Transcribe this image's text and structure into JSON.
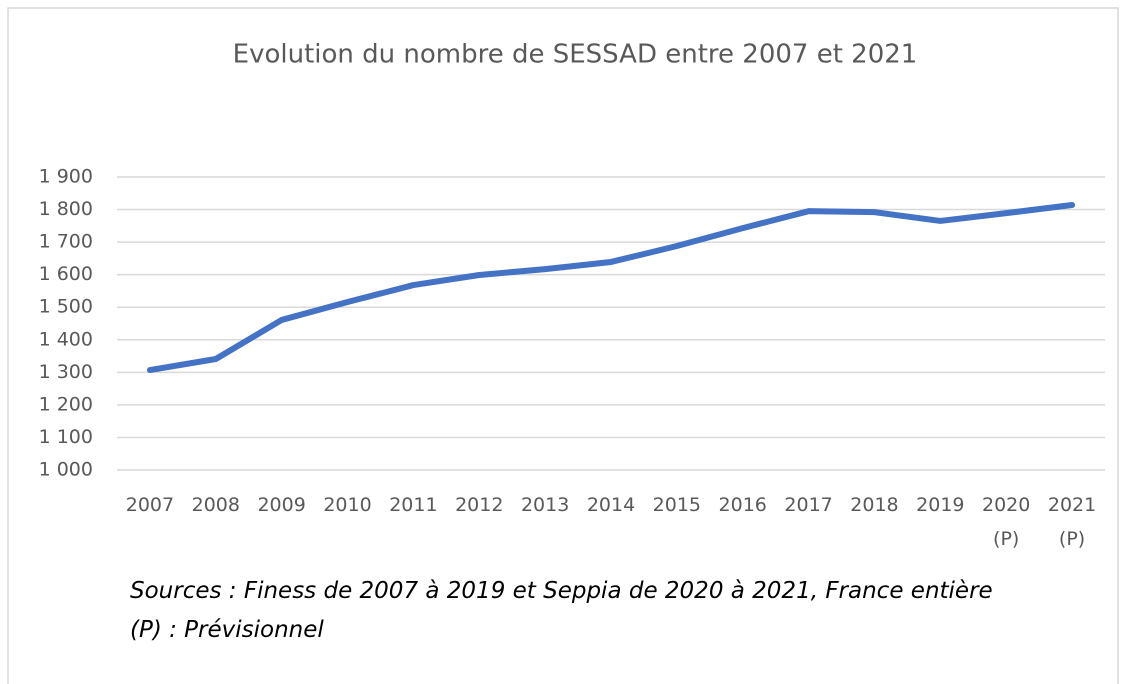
{
  "chart_data": {
    "type": "line",
    "title": "Evolution du nombre de SESSAD entre 2007 et 2021",
    "categories": [
      "2007",
      "2008",
      "2009",
      "2010",
      "2011",
      "2012",
      "2013",
      "2014",
      "2015",
      "2016",
      "2017",
      "2018",
      "2019",
      "2020\n(P)",
      "2021\n(P)"
    ],
    "series": [
      {
        "name": "SESSAD",
        "color": "#4472c4",
        "values": [
          1307,
          1341,
          1461,
          1516,
          1568,
          1599,
          1617,
          1639,
          1688,
          1743,
          1795,
          1792,
          1765,
          1789,
          1814
        ]
      }
    ],
    "ylim": [
      1000,
      1900
    ],
    "yticks": [
      {
        "value": 1000,
        "label": "1 000"
      },
      {
        "value": 1100,
        "label": "1 100"
      },
      {
        "value": 1200,
        "label": "1 200"
      },
      {
        "value": 1300,
        "label": "1 300"
      },
      {
        "value": 1400,
        "label": "1 400"
      },
      {
        "value": 1500,
        "label": "1 500"
      },
      {
        "value": 1600,
        "label": "1 600"
      },
      {
        "value": 1700,
        "label": "1 700"
      },
      {
        "value": 1800,
        "label": "1 800"
      },
      {
        "value": 1900,
        "label": "1 900"
      }
    ],
    "grid": true,
    "annotations": [
      "Sources : Finess de 2007 à 2019 et Seppia de 2020 à 2021, France entière",
      "(P) : Prévisionnel"
    ]
  }
}
